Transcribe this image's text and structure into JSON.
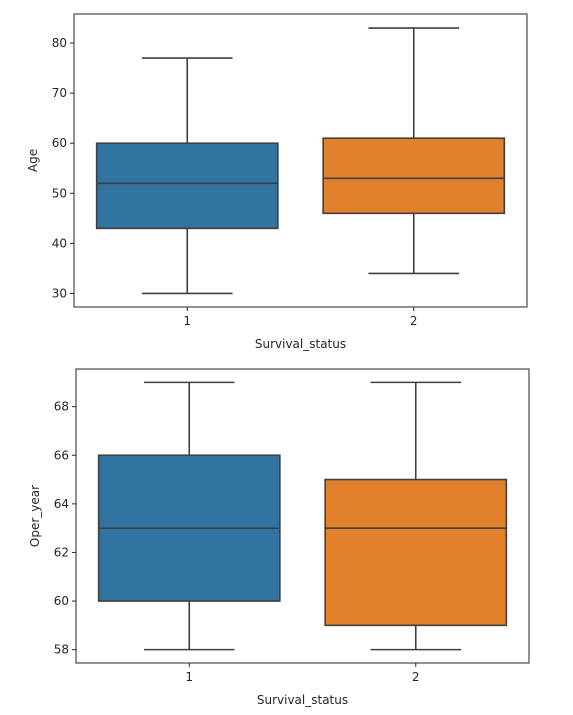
{
  "chart_data": [
    {
      "type": "boxplot",
      "xlabel": "Survival_status",
      "ylabel": "Age",
      "ylim": [
        27.3,
        85.8
      ],
      "yticks": [
        30,
        40,
        50,
        60,
        70,
        80
      ],
      "categories": [
        "1",
        "2"
      ],
      "colors": [
        "#3274a1",
        "#e1812c"
      ],
      "boxes": [
        {
          "category": "1",
          "min": 30,
          "q1": 43,
          "median": 52,
          "q3": 60,
          "max": 77
        },
        {
          "category": "2",
          "min": 34,
          "q1": 46,
          "median": 53,
          "q3": 61,
          "max": 83
        }
      ]
    },
    {
      "type": "boxplot",
      "xlabel": "Survival_status",
      "ylabel": "Oper_year",
      "ylim": [
        57.45,
        69.55
      ],
      "yticks": [
        58,
        60,
        62,
        64,
        66,
        68
      ],
      "categories": [
        "1",
        "2"
      ],
      "colors": [
        "#3274a1",
        "#e1812c"
      ],
      "boxes": [
        {
          "category": "1",
          "min": 58,
          "q1": 60,
          "median": 63,
          "q3": 66,
          "max": 69
        },
        {
          "category": "2",
          "min": 58,
          "q1": 59,
          "median": 63,
          "q3": 65,
          "max": 69
        }
      ]
    }
  ]
}
